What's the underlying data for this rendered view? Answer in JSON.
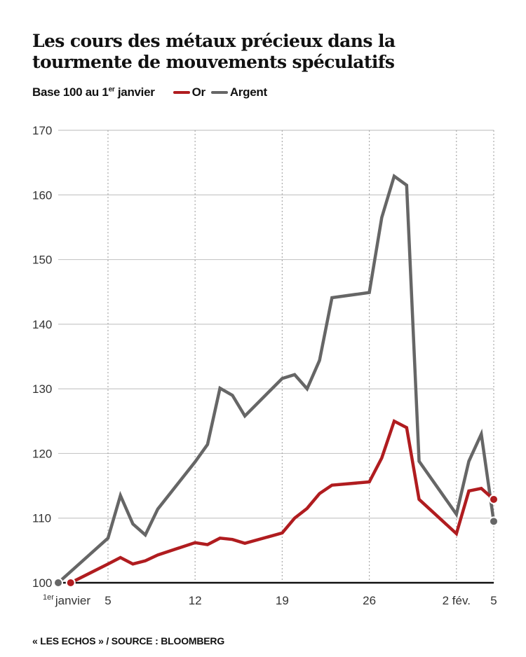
{
  "chart_data": {
    "type": "line",
    "title": "Les cours des métaux précieux dans la tourmente de mouvements spéculatifs",
    "subtitle_prefix": "Base 100 au 1",
    "subtitle_sup": "er",
    "subtitle_suffix": " janvier",
    "ylim": [
      100,
      170
    ],
    "yticks": [
      100,
      110,
      120,
      130,
      140,
      150,
      160,
      170
    ],
    "x_unit": "day index (1 = 1er janvier, 32 = 1er février)",
    "xlim": [
      1,
      36
    ],
    "xticks": [
      {
        "day": 1,
        "label": "janvier",
        "sup": "1er"
      },
      {
        "day": 5,
        "label": "5"
      },
      {
        "day": 12,
        "label": "12"
      },
      {
        "day": 19,
        "label": "19"
      },
      {
        "day": 26,
        "label": "26"
      },
      {
        "day": 33,
        "label": "2 fév."
      },
      {
        "day": 36,
        "label": "5"
      }
    ],
    "grid": true,
    "legend_position": "top-left",
    "series": [
      {
        "name": "Or",
        "color": "#b01c1f",
        "x": [
          2,
          5,
          6,
          7,
          8,
          9,
          12,
          13,
          14,
          15,
          16,
          19,
          20,
          21,
          22,
          23,
          26,
          27,
          28,
          29,
          30,
          33,
          34,
          35,
          36
        ],
        "values": [
          100,
          102.9,
          103.9,
          102.9,
          103.4,
          104.3,
          106.2,
          105.9,
          106.9,
          106.7,
          106.1,
          107.7,
          110,
          111.5,
          113.8,
          115.1,
          115.6,
          119.3,
          125,
          124,
          112.9,
          107.6,
          114.2,
          114.6,
          112.9
        ]
      },
      {
        "name": "Argent",
        "color": "#666666",
        "x": [
          1,
          5,
          6,
          7,
          8,
          9,
          12,
          13,
          14,
          15,
          16,
          19,
          20,
          21,
          22,
          23,
          26,
          27,
          28,
          29,
          30,
          33,
          34,
          35,
          36
        ],
        "values": [
          100,
          106.9,
          113.5,
          109.1,
          107.4,
          111.4,
          118.7,
          121.4,
          130.1,
          129,
          125.8,
          131.6,
          132.2,
          130,
          134.4,
          144.1,
          144.9,
          156.5,
          162.9,
          161.5,
          118.8,
          110.6,
          118.8,
          123,
          109.5
        ]
      }
    ]
  },
  "source": "« LES ECHOS » / SOURCE : BLOOMBERG"
}
